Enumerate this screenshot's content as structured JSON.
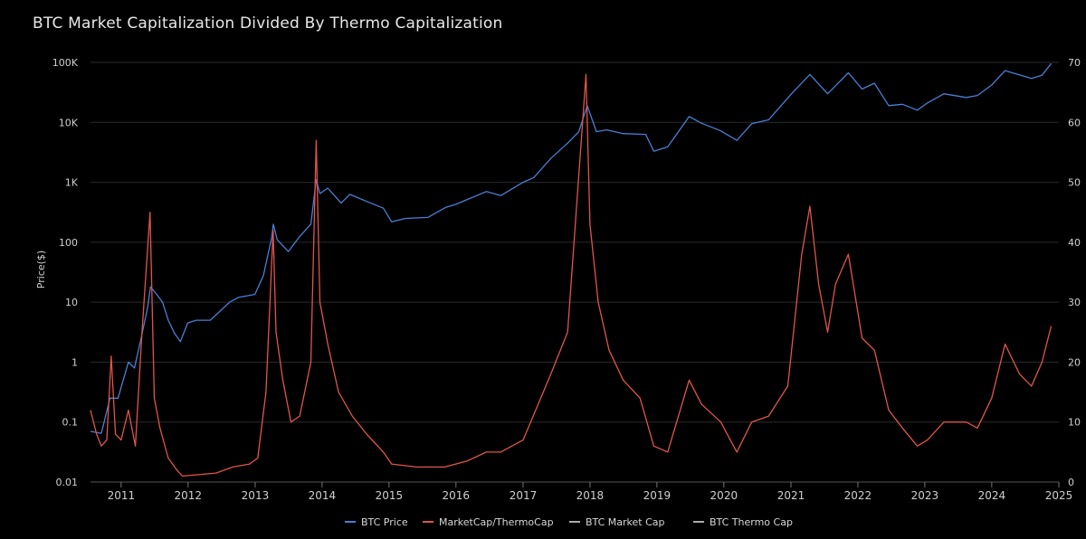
{
  "chart_data": {
    "type": "line",
    "title": "BTC Market Capitalization Divided By Thermo Capitalization",
    "ylabel": "Price($)",
    "y2label": "",
    "y_scale": "log",
    "ylim": [
      0.01,
      100000
    ],
    "y2lim": [
      0,
      70
    ],
    "y_ticks": [
      "0.01",
      "0.1",
      "1",
      "10",
      "100",
      "1K",
      "10K",
      "100K"
    ],
    "y_tick_values": [
      0.01,
      0.1,
      1,
      10,
      100,
      1000,
      10000,
      100000
    ],
    "y2_ticks": [
      "0",
      "10",
      "20",
      "30",
      "40",
      "50",
      "60",
      "70"
    ],
    "x_ticks": [
      "2011",
      "2012",
      "2013",
      "2014",
      "2015",
      "2016",
      "2017",
      "2018",
      "2019",
      "2020",
      "2021",
      "2022",
      "2023",
      "2024",
      "2025"
    ],
    "xlim": [
      "2010-07-18",
      "2025-01-01"
    ],
    "grid": "horizontal",
    "legend_position": "bottom-center",
    "series": [
      {
        "name": "BTC Price",
        "color": "#4a7fd6",
        "axis": "left",
        "points": [
          [
            "2010-07-18",
            0.07
          ],
          [
            "2010-09-15",
            0.065
          ],
          [
            "2010-11-01",
            0.25
          ],
          [
            "2010-12-15",
            0.25
          ],
          [
            "2011-02-10",
            1.0
          ],
          [
            "2011-03-15",
            0.8
          ],
          [
            "2011-04-20",
            2.5
          ],
          [
            "2011-05-25",
            8
          ],
          [
            "2011-06-10",
            18
          ],
          [
            "2011-07-10",
            14
          ],
          [
            "2011-08-15",
            10
          ],
          [
            "2011-09-15",
            5
          ],
          [
            "2011-10-20",
            3
          ],
          [
            "2011-11-20",
            2.2
          ],
          [
            "2011-12-30",
            4.5
          ],
          [
            "2012-02-15",
            5
          ],
          [
            "2012-05-01",
            5
          ],
          [
            "2012-08-15",
            10
          ],
          [
            "2012-10-01",
            12
          ],
          [
            "2012-12-31",
            13.5
          ],
          [
            "2013-02-15",
            28
          ],
          [
            "2013-04-01",
            120
          ],
          [
            "2013-04-10",
            200
          ],
          [
            "2013-05-01",
            110
          ],
          [
            "2013-07-01",
            70
          ],
          [
            "2013-09-01",
            125
          ],
          [
            "2013-11-01",
            200
          ],
          [
            "2013-11-30",
            1100
          ],
          [
            "2013-12-20",
            650
          ],
          [
            "2014-02-01",
            800
          ],
          [
            "2014-04-15",
            450
          ],
          [
            "2014-06-01",
            630
          ],
          [
            "2014-09-01",
            480
          ],
          [
            "2014-12-01",
            370
          ],
          [
            "2015-01-15",
            220
          ],
          [
            "2015-04-01",
            250
          ],
          [
            "2015-08-01",
            260
          ],
          [
            "2015-11-05",
            380
          ],
          [
            "2016-01-01",
            430
          ],
          [
            "2016-06-15",
            700
          ],
          [
            "2016-09-01",
            600
          ],
          [
            "2017-01-01",
            1000
          ],
          [
            "2017-03-01",
            1200
          ],
          [
            "2017-06-01",
            2500
          ],
          [
            "2017-09-01",
            4500
          ],
          [
            "2017-11-01",
            7000
          ],
          [
            "2017-12-17",
            19000
          ],
          [
            "2018-02-05",
            7000
          ],
          [
            "2018-04-01",
            7500
          ],
          [
            "2018-07-01",
            6500
          ],
          [
            "2018-11-01",
            6300
          ],
          [
            "2018-12-15",
            3300
          ],
          [
            "2019-03-01",
            3900
          ],
          [
            "2019-06-26",
            12500
          ],
          [
            "2019-09-01",
            9700
          ],
          [
            "2019-12-15",
            7200
          ],
          [
            "2020-03-12",
            5000
          ],
          [
            "2020-06-01",
            9500
          ],
          [
            "2020-09-01",
            11000
          ],
          [
            "2020-12-31",
            29000
          ],
          [
            "2021-04-14",
            63000
          ],
          [
            "2021-07-20",
            30000
          ],
          [
            "2021-11-10",
            67000
          ],
          [
            "2022-01-24",
            36000
          ],
          [
            "2022-04-01",
            45000
          ],
          [
            "2022-06-18",
            19000
          ],
          [
            "2022-09-01",
            20000
          ],
          [
            "2022-11-21",
            16000
          ],
          [
            "2023-01-15",
            21000
          ],
          [
            "2023-04-15",
            30000
          ],
          [
            "2023-08-15",
            26000
          ],
          [
            "2023-10-15",
            28000
          ],
          [
            "2024-01-01",
            42000
          ],
          [
            "2024-03-14",
            73000
          ],
          [
            "2024-08-05",
            54000
          ],
          [
            "2024-10-01",
            61000
          ],
          [
            "2024-11-20",
            96000
          ]
        ]
      },
      {
        "name": "MarketCap/ThermoCap",
        "color": "#e0554c",
        "axis": "right",
        "points": [
          [
            "2010-07-18",
            12
          ],
          [
            "2010-08-20",
            8
          ],
          [
            "2010-09-15",
            6
          ],
          [
            "2010-10-15",
            7
          ],
          [
            "2010-11-08",
            21
          ],
          [
            "2010-12-01",
            8
          ],
          [
            "2011-01-01",
            7
          ],
          [
            "2011-02-10",
            12
          ],
          [
            "2011-03-20",
            6
          ],
          [
            "2011-04-25",
            25
          ],
          [
            "2011-06-08",
            45
          ],
          [
            "2011-07-01",
            14
          ],
          [
            "2011-08-01",
            9
          ],
          [
            "2011-09-15",
            4
          ],
          [
            "2011-11-01",
            2
          ],
          [
            "2011-12-01",
            1
          ],
          [
            "2012-06-01",
            1.5
          ],
          [
            "2012-09-01",
            2.5
          ],
          [
            "2012-12-01",
            3
          ],
          [
            "2013-01-15",
            4
          ],
          [
            "2013-03-01",
            15
          ],
          [
            "2013-04-09",
            42
          ],
          [
            "2013-04-25",
            25
          ],
          [
            "2013-06-01",
            17
          ],
          [
            "2013-07-15",
            10
          ],
          [
            "2013-09-01",
            11
          ],
          [
            "2013-11-01",
            20
          ],
          [
            "2013-11-30",
            57
          ],
          [
            "2013-12-20",
            30
          ],
          [
            "2014-02-01",
            23
          ],
          [
            "2014-04-01",
            15
          ],
          [
            "2014-06-15",
            11
          ],
          [
            "2014-09-01",
            8
          ],
          [
            "2014-12-01",
            5
          ],
          [
            "2015-01-15",
            3
          ],
          [
            "2015-06-01",
            2.5
          ],
          [
            "2015-11-01",
            2.5
          ],
          [
            "2016-03-01",
            3.5
          ],
          [
            "2016-06-15",
            5
          ],
          [
            "2016-09-01",
            5
          ],
          [
            "2017-01-01",
            7
          ],
          [
            "2017-06-01",
            18
          ],
          [
            "2017-09-01",
            25
          ],
          [
            "2017-12-10",
            68
          ],
          [
            "2018-01-01",
            43
          ],
          [
            "2018-02-15",
            30
          ],
          [
            "2018-04-15",
            22
          ],
          [
            "2018-07-01",
            17
          ],
          [
            "2018-10-01",
            14
          ],
          [
            "2018-12-15",
            6
          ],
          [
            "2019-03-01",
            5
          ],
          [
            "2019-06-26",
            17
          ],
          [
            "2019-09-01",
            13
          ],
          [
            "2019-12-15",
            10
          ],
          [
            "2020-03-12",
            5
          ],
          [
            "2020-06-01",
            10
          ],
          [
            "2020-09-01",
            11
          ],
          [
            "2020-12-15",
            16
          ],
          [
            "2021-03-01",
            38
          ],
          [
            "2021-04-14",
            46
          ],
          [
            "2021-06-01",
            33
          ],
          [
            "2021-07-20",
            25
          ],
          [
            "2021-09-01",
            33
          ],
          [
            "2021-11-10",
            38
          ],
          [
            "2022-01-24",
            24
          ],
          [
            "2022-04-01",
            22
          ],
          [
            "2022-06-18",
            12
          ],
          [
            "2022-09-01",
            9
          ],
          [
            "2022-11-21",
            6
          ],
          [
            "2023-01-15",
            7
          ],
          [
            "2023-04-15",
            10
          ],
          [
            "2023-08-15",
            10
          ],
          [
            "2023-10-15",
            9
          ],
          [
            "2024-01-01",
            14
          ],
          [
            "2024-03-14",
            23
          ],
          [
            "2024-06-01",
            18
          ],
          [
            "2024-08-05",
            16
          ],
          [
            "2024-10-01",
            20
          ],
          [
            "2024-11-20",
            26
          ]
        ]
      },
      {
        "name": "BTC Market Cap",
        "color": "#aaaaaa",
        "axis": "left",
        "points": []
      },
      {
        "name": "BTC Thermo Cap",
        "color": "#aaaaaa",
        "axis": "left",
        "points": []
      }
    ]
  }
}
